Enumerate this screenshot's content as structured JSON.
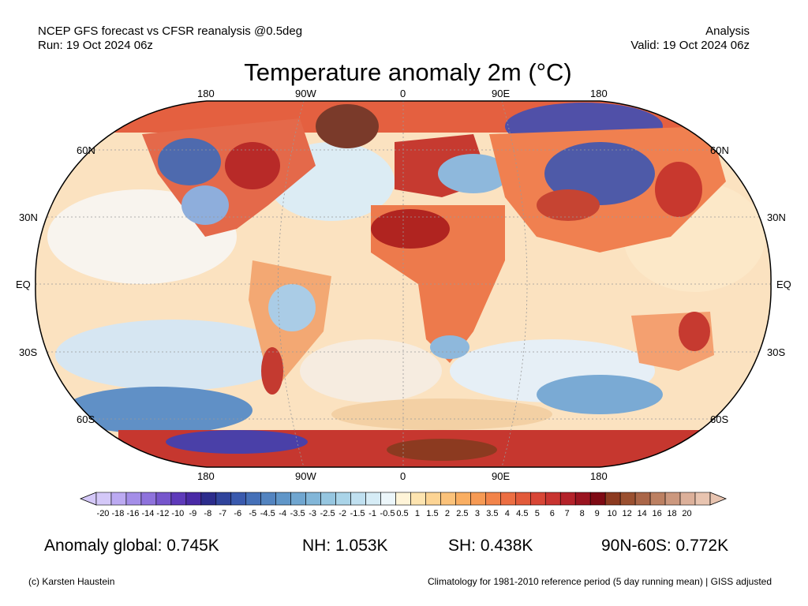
{
  "header": {
    "line1_left": "NCEP GFS forecast vs CFSR reanalysis @0.5deg",
    "line2_left": "Run: 19 Oct 2024 06z",
    "line1_right": "Analysis",
    "line2_right": "Valid: 19 Oct 2024 06z"
  },
  "title": "Temperature anomaly 2m (°C)",
  "map": {
    "lon_labels": [
      "180",
      "90W",
      "0",
      "90E",
      "180"
    ],
    "lat_labels_left": [
      "60N",
      "30N",
      "EQ",
      "30S",
      "60S"
    ],
    "lat_labels_right": [
      "60N",
      "30N",
      "EQ",
      "30S",
      "60S"
    ]
  },
  "colorbar": {
    "labels": [
      "-20",
      "-18",
      "-16",
      "-14",
      "-12",
      "-10",
      "-9",
      "-8",
      "-7",
      "-6",
      "-5",
      "-4.5",
      "-4",
      "-3.5",
      "-3",
      "-2.5",
      "-2",
      "-1.5",
      "-1",
      "-0.5",
      "0.5",
      "1",
      "1.5",
      "2",
      "2.5",
      "3",
      "3.5",
      "4",
      "4.5",
      "5",
      "6",
      "7",
      "8",
      "9",
      "10",
      "12",
      "14",
      "16",
      "18",
      "20"
    ],
    "colors": [
      "#d4c8f8",
      "#bcaaf2",
      "#a48ee8",
      "#8e72dc",
      "#7656cc",
      "#5e3aba",
      "#4a2aa6",
      "#2c2c8c",
      "#30449c",
      "#3a5aae",
      "#4570b8",
      "#5384c0",
      "#6096c8",
      "#70a6d0",
      "#82b6d8",
      "#96c6e0",
      "#aad4e8",
      "#c0e0f0",
      "#d6ecf6",
      "#ecf6fa",
      "#fff4d8",
      "#fde4b0",
      "#fcd494",
      "#fbc27a",
      "#f9ae62",
      "#f69a54",
      "#f2844a",
      "#ec6e42",
      "#e25a3a",
      "#d84636",
      "#c83430",
      "#b4222a",
      "#9a1420",
      "#7e0a14",
      "#8c3a20",
      "#9a5030",
      "#aa6648",
      "#bc8062",
      "#cc987e",
      "#dcb09a",
      "#e8c4b0"
    ]
  },
  "stats": {
    "global": "Anomaly global: 0.745K",
    "nh": "NH: 1.053K",
    "sh": "SH: 0.438K",
    "arctic": "90N-60S: 0.772K"
  },
  "footer": {
    "left": "(c) Karsten Haustein",
    "right": "Climatology for 1981-2010 reference period (5 day running mean) | GISS adjusted"
  }
}
